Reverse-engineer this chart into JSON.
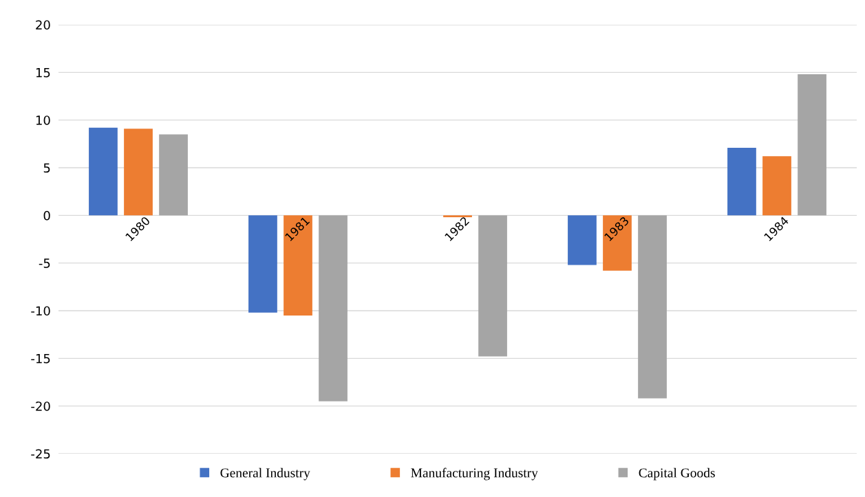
{
  "chart_data": {
    "type": "bar",
    "categories": [
      "1980",
      "1981",
      "1982",
      "1983",
      "1984"
    ],
    "series": [
      {
        "name": "General Industry",
        "color": "#4472c4",
        "values": [
          9.2,
          -10.2,
          0,
          -5.2,
          7.1
        ]
      },
      {
        "name": "Manufacturing Industry",
        "color": "#ed7d31",
        "values": [
          9.1,
          -10.5,
          -0.2,
          -5.8,
          6.2
        ]
      },
      {
        "name": "Capital Goods",
        "color": "#a5a5a5",
        "values": [
          8.5,
          -19.5,
          -14.8,
          -19.2,
          14.8
        ]
      }
    ],
    "ylim": [
      -25,
      20
    ],
    "yticks": [
      -25,
      -20,
      -15,
      -10,
      -5,
      0,
      5,
      10,
      15,
      20
    ],
    "grid": "y",
    "legend": "bottom"
  }
}
